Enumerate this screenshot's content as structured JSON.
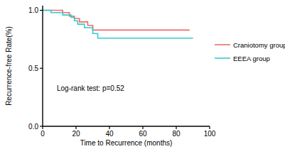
{
  "chart_data": {
    "type": "step",
    "x_label": "Time to Recurrence (months)",
    "y_label": "Recurrence-free Rate(%)",
    "annotation": "Log-rank test: p=0.52",
    "xlim": [
      0,
      100
    ],
    "xticks": [
      0,
      20,
      40,
      60,
      80,
      100
    ],
    "ylim": [
      0,
      1.04
    ],
    "yticks": [
      {
        "value": 0,
        "label": "0.0"
      },
      {
        "value": 0.5,
        "label": "0.5"
      },
      {
        "value": 1,
        "label": "1.0"
      }
    ],
    "grid": false,
    "legend": "right",
    "series": [
      {
        "name": "Craniotomy group",
        "color": "#f06b6b",
        "x": [
          0,
          12,
          16,
          19,
          22,
          27,
          30,
          88
        ],
        "values": [
          1,
          0.98,
          0.95,
          0.93,
          0.9,
          0.87,
          0.83,
          0.83
        ]
      },
      {
        "name": "EEEA group",
        "color": "#33cccc",
        "x": [
          0,
          5,
          12,
          17,
          19,
          21,
          25,
          30,
          33,
          90
        ],
        "values": [
          1,
          0.98,
          0.96,
          0.94,
          0.91,
          0.88,
          0.85,
          0.8,
          0.76,
          0.76
        ]
      }
    ]
  }
}
